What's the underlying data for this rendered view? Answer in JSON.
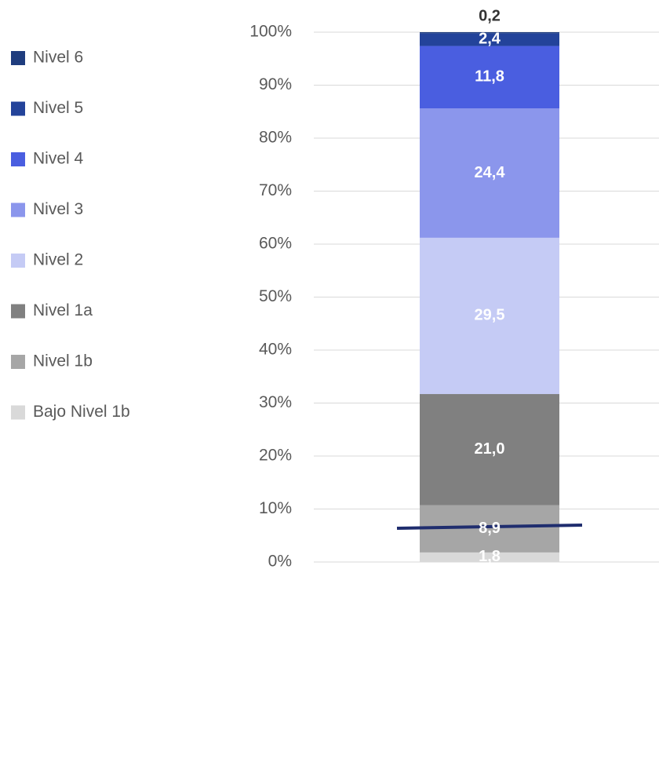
{
  "chart_data": {
    "type": "stacked_bar",
    "categories": [
      null
    ],
    "series": [
      {
        "name": "Bajo Nivel 1b",
        "color": "#d9d9d9",
        "values": [
          1.8
        ],
        "value_labels": [
          "1,8"
        ]
      },
      {
        "name": "Nivel 1b",
        "color": "#a6a6a6",
        "values": [
          8.9
        ],
        "value_labels": [
          "8,9"
        ]
      },
      {
        "name": "Nivel 1a",
        "color": "#808080",
        "values": [
          21.0
        ],
        "value_labels": [
          "21,0"
        ]
      },
      {
        "name": "Nivel 2",
        "color": "#c5cbf5",
        "values": [
          29.5
        ],
        "value_labels": [
          "29,5"
        ]
      },
      {
        "name": "Nivel 3",
        "color": "#8b96ec",
        "values": [
          24.4
        ],
        "value_labels": [
          "24,4"
        ]
      },
      {
        "name": "Nivel 4",
        "color": "#4a5ee0",
        "values": [
          11.8
        ],
        "value_labels": [
          "11,8"
        ]
      },
      {
        "name": "Nivel 5",
        "color": "#23439a",
        "values": [
          2.4
        ],
        "value_labels": [
          "2,4"
        ]
      },
      {
        "name": "Nivel 6",
        "color": "#1f3d7e",
        "values": [
          0.2
        ],
        "value_labels": [
          "0,2"
        ]
      }
    ],
    "ylim": [
      0,
      100
    ],
    "yticks": [
      {
        "value": 0,
        "label": "0%"
      },
      {
        "value": 10,
        "label": "10%"
      },
      {
        "value": 20,
        "label": "20%"
      },
      {
        "value": 30,
        "label": "30%"
      },
      {
        "value": 40,
        "label": "40%"
      },
      {
        "value": 50,
        "label": "50%"
      },
      {
        "value": 60,
        "label": "60%"
      },
      {
        "value": 70,
        "label": "70%"
      },
      {
        "value": 80,
        "label": "80%"
      },
      {
        "value": 90,
        "label": "90%"
      },
      {
        "value": 100,
        "label": "100%"
      }
    ],
    "grid": true,
    "legend": "left"
  }
}
